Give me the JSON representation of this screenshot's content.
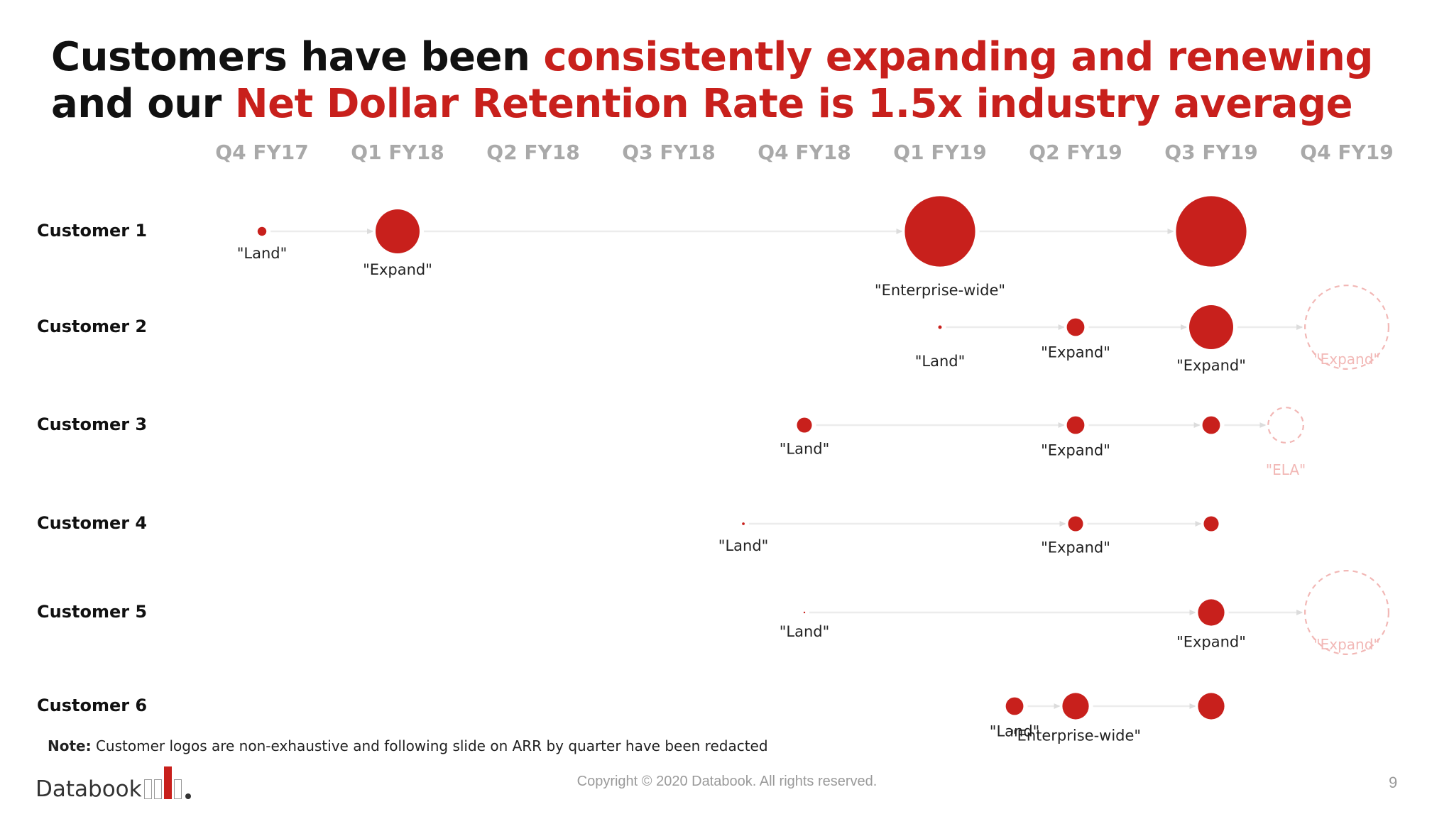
{
  "title": {
    "part1": "Customers have been ",
    "part2": "consistently expanding and renewing",
    "part3": " and our ",
    "part4": "Net Dollar Retention Rate is 1.5x industry average"
  },
  "colors": {
    "accent": "#c8201c",
    "future": "#f2b8b6",
    "arrow": "#ececec",
    "muted": "#a9a9a9"
  },
  "quarters": [
    "Q4 FY17",
    "Q1 FY18",
    "Q2 FY18",
    "Q3 FY18",
    "Q4 FY18",
    "Q1 FY19",
    "Q2 FY19",
    "Q3 FY19",
    "Q4 FY19"
  ],
  "customers": [
    {
      "name": "Customer 1",
      "stages": [
        {
          "label": "\"Land\"",
          "quarter": 0,
          "size": 1,
          "status": "actual"
        },
        {
          "label": "\"Expand\"",
          "quarter": 1,
          "size": 5,
          "status": "actual"
        },
        {
          "label": "\"Enterprise-wide\"",
          "quarter": 5,
          "size": 8,
          "status": "actual"
        },
        {
          "label": "",
          "quarter": 7,
          "size": 8,
          "status": "actual"
        }
      ]
    },
    {
      "name": "Customer 2",
      "stages": [
        {
          "label": "\"Land\"",
          "quarter": 5,
          "size": 0.4,
          "status": "actual"
        },
        {
          "label": "\"Expand\"",
          "quarter": 6,
          "size": 2,
          "status": "actual"
        },
        {
          "label": "\"Expand\"",
          "quarter": 7,
          "size": 5,
          "status": "actual"
        },
        {
          "label": "\"Expand\"",
          "quarter": 8,
          "size": 9.5,
          "status": "projected"
        }
      ]
    },
    {
      "name": "Customer 3",
      "stages": [
        {
          "label": "\"Land\"",
          "quarter": 4,
          "size": 1.7,
          "status": "actual"
        },
        {
          "label": "\"Expand\"",
          "quarter": 6,
          "size": 2,
          "status": "actual"
        },
        {
          "label": "",
          "quarter": 7,
          "size": 2,
          "status": "actual"
        },
        {
          "label": "\"ELA\"",
          "quarter": 7.55,
          "size": 4,
          "status": "projected"
        }
      ]
    },
    {
      "name": "Customer 4",
      "stages": [
        {
          "label": "\"Land\"",
          "quarter": 3.55,
          "size": 0.3,
          "status": "actual"
        },
        {
          "label": "\"Expand\"",
          "quarter": 6,
          "size": 1.7,
          "status": "actual"
        },
        {
          "label": "",
          "quarter": 7,
          "size": 1.7,
          "status": "actual"
        }
      ]
    },
    {
      "name": "Customer 5",
      "stages": [
        {
          "label": "\"Land\"",
          "quarter": 4,
          "size": 0.15,
          "status": "actual"
        },
        {
          "label": "\"Expand\"",
          "quarter": 7,
          "size": 3,
          "status": "actual"
        },
        {
          "label": "\"Expand\"",
          "quarter": 8,
          "size": 9.5,
          "status": "projected"
        }
      ]
    },
    {
      "name": "Customer 6",
      "stages": [
        {
          "label": "\"Land\"",
          "quarter": 5.55,
          "size": 2,
          "status": "actual"
        },
        {
          "label": "\"Enterprise-wide\"",
          "quarter": 6,
          "size": 3,
          "status": "actual"
        },
        {
          "label": "",
          "quarter": 7,
          "size": 3,
          "status": "actual"
        }
      ]
    }
  ],
  "note": {
    "bold": "Note:",
    "text": " Customer logos are non-exhaustive and following slide on ARR by quarter have been redacted"
  },
  "footer": {
    "logo_text": "Databook",
    "copyright": "Copyright © 2020 Databook. All rights reserved.",
    "page_number": "9"
  }
}
